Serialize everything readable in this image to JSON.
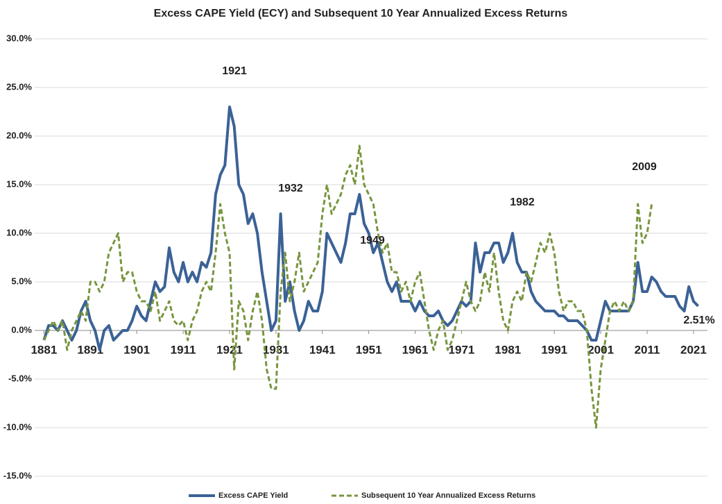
{
  "chart_data": {
    "type": "line",
    "title": "Excess CAPE Yield (ECY) and Subsequent 10 Year Annualized Excess Returns",
    "x": [
      1881,
      1882,
      1883,
      1884,
      1885,
      1886,
      1887,
      1888,
      1889,
      1890,
      1891,
      1892,
      1893,
      1894,
      1895,
      1896,
      1897,
      1898,
      1899,
      1900,
      1901,
      1902,
      1903,
      1904,
      1905,
      1906,
      1907,
      1908,
      1909,
      1910,
      1911,
      1912,
      1913,
      1914,
      1915,
      1916,
      1917,
      1918,
      1919,
      1920,
      1921,
      1922,
      1923,
      1924,
      1925,
      1926,
      1927,
      1928,
      1929,
      1930,
      1931,
      1932,
      1933,
      1934,
      1935,
      1936,
      1937,
      1938,
      1939,
      1940,
      1941,
      1942,
      1943,
      1944,
      1945,
      1946,
      1947,
      1948,
      1949,
      1950,
      1951,
      1952,
      1953,
      1954,
      1955,
      1956,
      1957,
      1958,
      1959,
      1960,
      1961,
      1962,
      1963,
      1964,
      1965,
      1966,
      1967,
      1968,
      1969,
      1970,
      1971,
      1972,
      1973,
      1974,
      1975,
      1976,
      1977,
      1978,
      1979,
      1980,
      1981,
      1982,
      1983,
      1984,
      1985,
      1986,
      1987,
      1988,
      1989,
      1990,
      1991,
      1992,
      1993,
      1994,
      1995,
      1996,
      1997,
      1998,
      1999,
      2000,
      2001,
      2002,
      2003,
      2004,
      2005,
      2006,
      2007,
      2008,
      2009,
      2010,
      2011,
      2012,
      2013,
      2014,
      2015,
      2016,
      2017,
      2018,
      2019,
      2020,
      2021,
      2022
    ],
    "series": [
      {
        "name": "Excess CAPE Yield",
        "color": "#3b6296",
        "dash": false,
        "values": [
          -1,
          0.5,
          0.5,
          0,
          1,
          0,
          -1,
          0,
          2,
          3,
          1,
          0,
          -2,
          0,
          0.5,
          -1,
          -0.5,
          0,
          0,
          1,
          2.5,
          1.5,
          1,
          3,
          5,
          4,
          4.5,
          8.5,
          6,
          5,
          7,
          5,
          6,
          5,
          7,
          6.5,
          8,
          14,
          16,
          17,
          23,
          21,
          15,
          14,
          11,
          12,
          10,
          6,
          3,
          0,
          1,
          12,
          3,
          5,
          2,
          0,
          1,
          3,
          2,
          2,
          4,
          10,
          9,
          8,
          7,
          9,
          12,
          12,
          14,
          11,
          10,
          8,
          9,
          7,
          5,
          4,
          5,
          3,
          3,
          3,
          2,
          3,
          2,
          1.5,
          1.5,
          2,
          1,
          0.5,
          1,
          2,
          3,
          2.5,
          3,
          9,
          6,
          8,
          8,
          9,
          9,
          7,
          8,
          10,
          7,
          6,
          6,
          4,
          3,
          2.5,
          2,
          2,
          2,
          1.5,
          1.5,
          1,
          1,
          1,
          0.5,
          0,
          -1,
          -1,
          1,
          3,
          2,
          2,
          2,
          2,
          2,
          3,
          7,
          4,
          4,
          5.5,
          5,
          4,
          3.5,
          3.5,
          3.5,
          2.5,
          2,
          4.5,
          3,
          2.51
        ]
      },
      {
        "name": "Subsequent 10 Year Annualized Excess Returns",
        "color": "#77953d",
        "dash": true,
        "values": [
          -1,
          0,
          1,
          0,
          1,
          -2,
          0,
          1,
          2,
          1,
          5,
          5,
          4,
          5,
          8,
          9,
          10,
          5,
          6,
          6,
          4,
          3,
          3,
          2,
          4,
          1,
          2,
          3,
          1,
          0.5,
          1,
          -1,
          1,
          2,
          4,
          5,
          4,
          8,
          13,
          10,
          8,
          -4,
          3,
          2,
          -1,
          2,
          4,
          1,
          -4,
          -6,
          -6,
          4,
          8,
          3,
          5,
          8,
          4,
          5,
          6,
          7,
          12,
          15,
          12,
          13,
          14,
          16,
          17,
          15,
          19,
          15,
          14,
          13,
          10,
          8,
          9,
          6,
          6,
          4,
          5,
          3,
          5,
          6,
          3,
          0,
          -2,
          0,
          1,
          -2,
          -1,
          1,
          3,
          5,
          3,
          2,
          3,
          6,
          4,
          8,
          4,
          1,
          0,
          3,
          4,
          3,
          6,
          5,
          7,
          9,
          8,
          10,
          8,
          4,
          2,
          3,
          3,
          2,
          2,
          0,
          -6,
          -10,
          -4,
          -1,
          2,
          3,
          2,
          3,
          2,
          3,
          13,
          9,
          10,
          13,
          null,
          null,
          null,
          null,
          null,
          null,
          null,
          null,
          null,
          null
        ]
      }
    ],
    "xlim": [
      1879,
      2024
    ],
    "xticks": [
      1881,
      1891,
      1901,
      1911,
      1921,
      1931,
      1941,
      1951,
      1961,
      1971,
      1981,
      1991,
      2001,
      2011,
      2021
    ],
    "ylim": [
      -16.5,
      31.5
    ],
    "yticks": [
      {
        "value": -15,
        "label": "-15.0%"
      },
      {
        "value": -10,
        "label": "-10.0%"
      },
      {
        "value": -5,
        "label": "-5.0%"
      },
      {
        "value": 0,
        "label": "0.0%"
      },
      {
        "value": 5,
        "label": "5.0%"
      },
      {
        "value": 10,
        "label": "10.0%"
      },
      {
        "value": 15,
        "label": "15.0%"
      },
      {
        "value": 20,
        "label": "20.0%"
      },
      {
        "value": 25,
        "label": "25.0%"
      },
      {
        "value": 30,
        "label": "30.0%"
      }
    ],
    "grid": true,
    "legend": "bottom",
    "annotations": [
      "1921",
      "1932",
      "1949",
      "1982",
      "2009",
      "2.51%"
    ]
  }
}
